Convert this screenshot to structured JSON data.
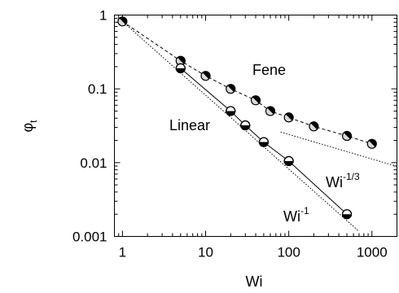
{
  "chart_data": {
    "type": "scatter",
    "xlabel": "Wi",
    "ylabel_main": "φ",
    "ylabel_sub": "t",
    "xscale": "log",
    "yscale": "log",
    "xlim": [
      0.8,
      2000
    ],
    "ylim": [
      0.001,
      1
    ],
    "grid": false,
    "x_tick_labels": [
      "1",
      "10",
      "100",
      "1000"
    ],
    "y_tick_labels": [
      "0.001",
      "0.01",
      "0.1",
      "1"
    ],
    "series": [
      {
        "name": "Fene",
        "line": "dashed",
        "marker": "circle-half-filled",
        "x": [
          1,
          5,
          10,
          20,
          40,
          60,
          100,
          200,
          500,
          1000
        ],
        "y": [
          0.82,
          0.24,
          0.15,
          0.1,
          0.07,
          0.05,
          0.041,
          0.031,
          0.023,
          0.018
        ]
      },
      {
        "name": "Linear",
        "line": "solid",
        "marker": "circle-half-filled",
        "x": [
          5,
          20,
          30,
          50,
          100,
          500
        ],
        "y": [
          0.19,
          0.05,
          0.032,
          0.019,
          0.0105,
          0.002
        ]
      }
    ],
    "reference_lines": [
      {
        "name": "Wi⁻¹",
        "label_base": "Wi",
        "label_exp": "-1",
        "x": [
          1,
          700
        ],
        "y": [
          0.82,
          0.00117
        ]
      },
      {
        "name": "Wi⁻¹ᐟ³",
        "label_base": "Wi",
        "label_exp": "-1/3",
        "x": [
          80,
          2000
        ],
        "y": [
          0.026,
          0.0089
        ]
      }
    ],
    "annotations": [
      {
        "text": "Fene"
      },
      {
        "text": "Linear"
      }
    ]
  }
}
